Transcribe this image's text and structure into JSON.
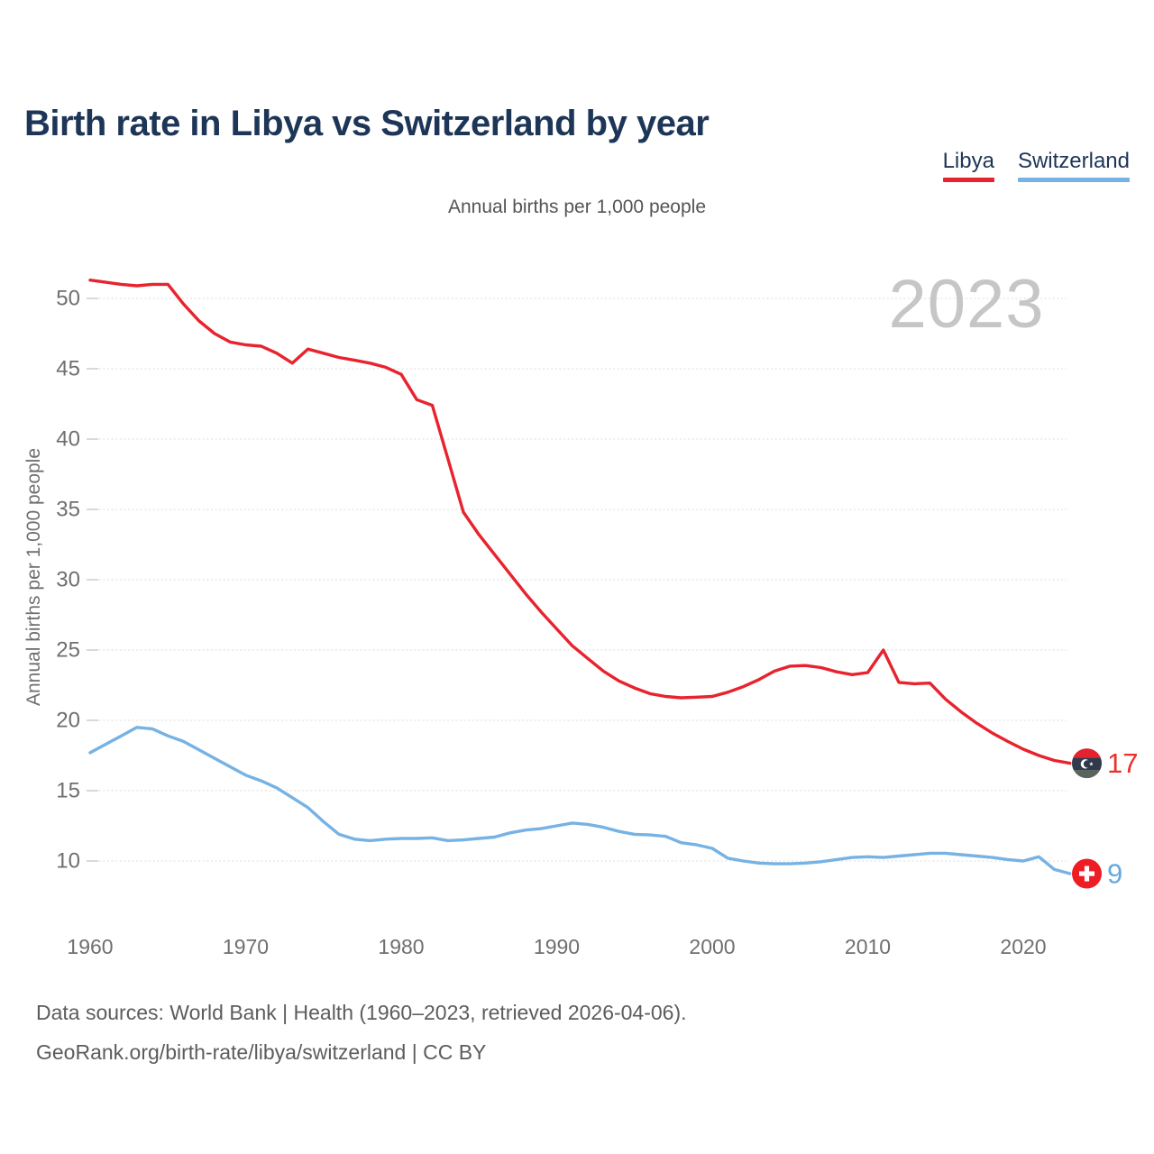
{
  "page": {
    "title": "Birth rate in Libya vs Switzerland by year",
    "subtitle": "Annual births per 1,000 people",
    "watermark": "2023",
    "footer_line1": "Data sources: World Bank | Health (1960–2023, retrieved 2026-04-06).",
    "footer_line2": "GeoRank.org/birth-rate/libya/switzerland | CC BY"
  },
  "legend": {
    "items": [
      {
        "label": "Libya",
        "color": "#e8232e"
      },
      {
        "label": "Switzerland",
        "color": "#76b2e3"
      }
    ]
  },
  "icons": {
    "libya_flag_icon": {
      "top": "#e4222d",
      "middle": "#313a4d",
      "bottom": "#59655c",
      "emblem": "#ffffff"
    },
    "swiss_flag_icon": {
      "background": "#ee1c25",
      "cross": "#ffffff"
    }
  },
  "chart_data": {
    "type": "line",
    "title": "Birth rate in Libya vs Switzerland by year",
    "subtitle": "Annual births per 1,000 people",
    "xlabel": "",
    "ylabel": "Annual births per 1,000 people",
    "grid": true,
    "legend_position": "top-right",
    "watermark": "2023",
    "ylim": [
      8,
      53
    ],
    "y_ticks": [
      10,
      15,
      20,
      25,
      30,
      35,
      40,
      45,
      50
    ],
    "x_ticks": [
      1960,
      1970,
      1980,
      1990,
      2000,
      2010,
      2020
    ],
    "x": [
      1960,
      1961,
      1962,
      1963,
      1964,
      1965,
      1966,
      1967,
      1968,
      1969,
      1970,
      1971,
      1972,
      1973,
      1974,
      1975,
      1976,
      1977,
      1978,
      1979,
      1980,
      1981,
      1982,
      1983,
      1984,
      1985,
      1986,
      1987,
      1988,
      1989,
      1990,
      1991,
      1992,
      1993,
      1994,
      1995,
      1996,
      1997,
      1998,
      1999,
      2000,
      2001,
      2002,
      2003,
      2004,
      2005,
      2006,
      2007,
      2008,
      2009,
      2010,
      2011,
      2012,
      2013,
      2014,
      2015,
      2016,
      2017,
      2018,
      2019,
      2020,
      2021,
      2022,
      2023
    ],
    "series": [
      {
        "name": "Libya",
        "color": "#e8232e",
        "label_color": "#e8312f",
        "flag": "libya",
        "end_label": "17",
        "values": [
          51.3,
          51.15,
          51.0,
          50.9,
          51.0,
          51.0,
          49.6,
          48.4,
          47.5,
          46.9,
          46.7,
          46.6,
          46.1,
          45.4,
          46.4,
          46.1,
          45.8,
          45.6,
          45.4,
          45.1,
          44.6,
          42.8,
          42.4,
          38.6,
          34.8,
          33.2,
          31.8,
          30.4,
          29.0,
          27.7,
          26.5,
          25.3,
          24.4,
          23.5,
          22.8,
          22.3,
          21.9,
          21.7,
          21.6,
          21.65,
          21.7,
          22.0,
          22.4,
          22.9,
          23.5,
          23.85,
          23.9,
          23.75,
          23.45,
          23.25,
          23.4,
          25.0,
          22.7,
          22.6,
          22.65,
          21.5,
          20.6,
          19.8,
          19.1,
          18.5,
          17.95,
          17.5,
          17.15,
          16.95
        ]
      },
      {
        "name": "Switzerland",
        "color": "#76b2e3",
        "label_color": "#64a9de",
        "flag": "switzerland",
        "end_label": "9",
        "values": [
          17.7,
          18.3,
          18.9,
          19.5,
          19.4,
          18.9,
          18.5,
          17.9,
          17.3,
          16.7,
          16.1,
          15.7,
          15.2,
          14.5,
          13.8,
          12.8,
          11.9,
          11.55,
          11.45,
          11.55,
          11.6,
          11.6,
          11.65,
          11.45,
          11.5,
          11.6,
          11.7,
          12.0,
          12.2,
          12.3,
          12.5,
          12.7,
          12.6,
          12.4,
          12.1,
          11.9,
          11.85,
          11.75,
          11.3,
          11.15,
          10.9,
          10.2,
          10.0,
          9.85,
          9.8,
          9.8,
          9.85,
          9.95,
          10.1,
          10.25,
          10.3,
          10.25,
          10.35,
          10.45,
          10.55,
          10.55,
          10.45,
          10.35,
          10.25,
          10.1,
          10.0,
          10.3,
          9.4,
          9.1
        ]
      }
    ]
  }
}
